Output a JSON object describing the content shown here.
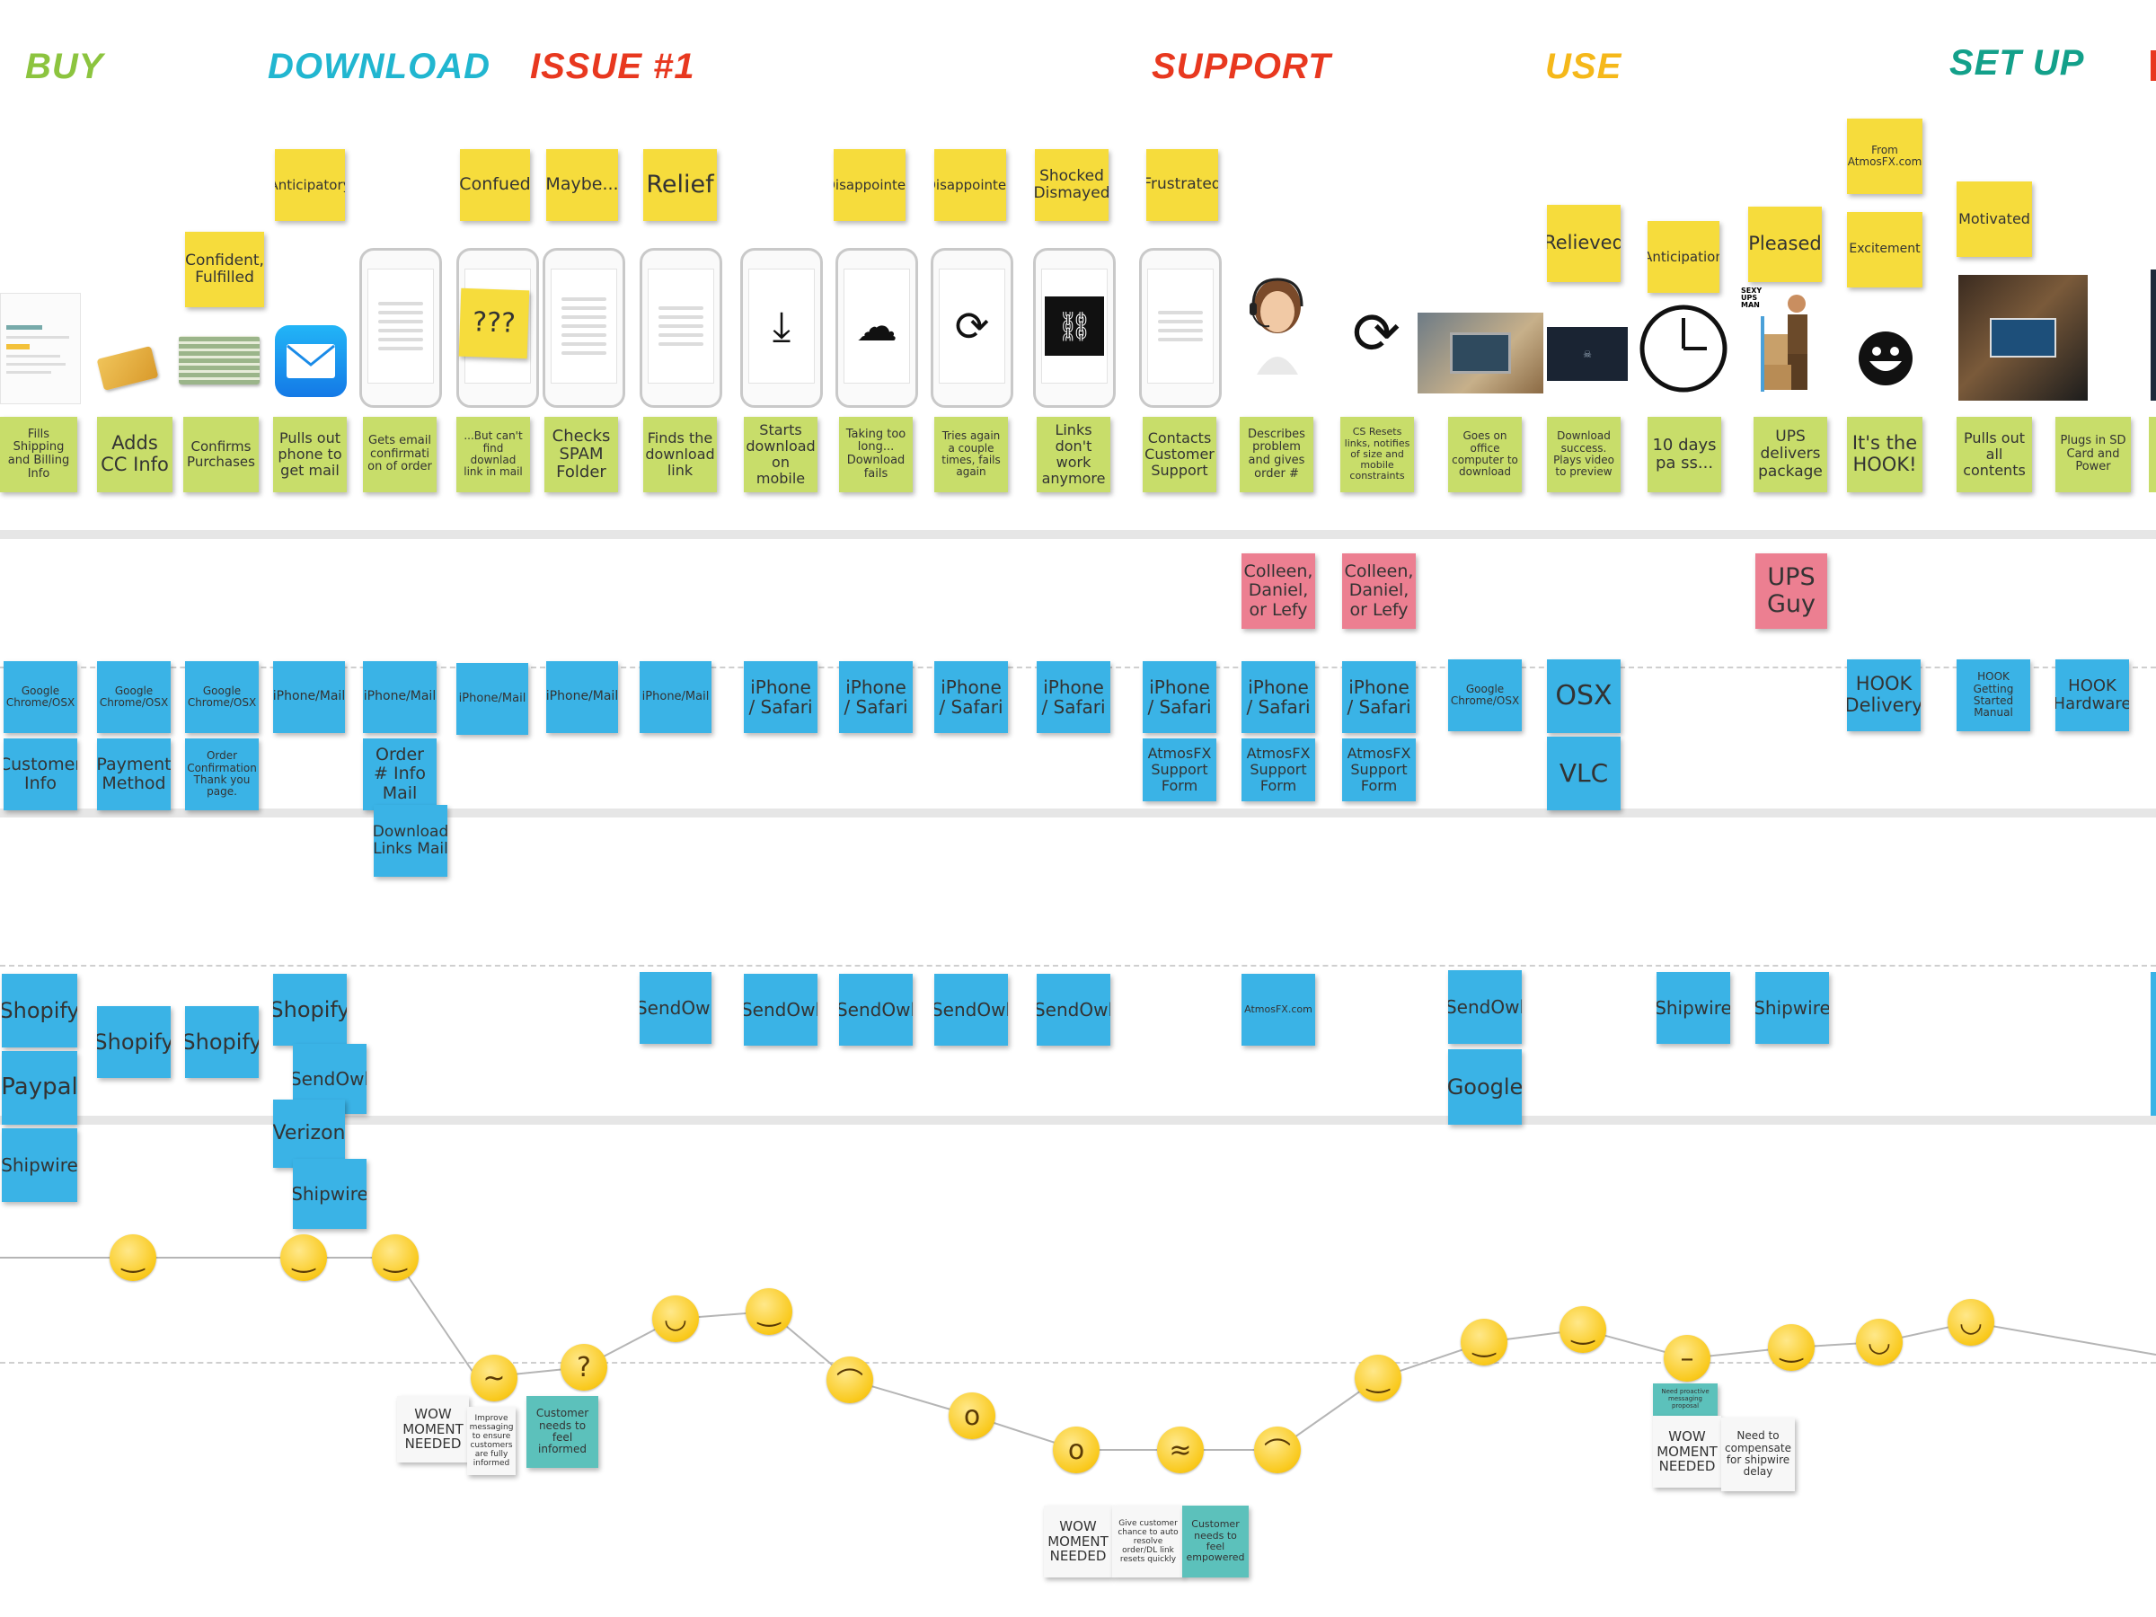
{
  "phases": [
    "BUY",
    "DOWNLOAD",
    "ISSUE #1",
    "SUPPORT",
    "USE",
    "SET UP"
  ],
  "colors": {
    "buy": "#8cc43f",
    "download": "#21b6d0",
    "issue": "#e8381f",
    "support": "#e8381f",
    "use": "#f5b81a",
    "setup": "#13a08a",
    "sticky_yellow": "#f6dc3c",
    "sticky_green": "#c8dd6a",
    "sticky_blue": "#3ab3e6",
    "sticky_pink": "#ec7f91",
    "sticky_teal": "#5cc1bb"
  },
  "feelings": [
    "Confident, Fulfilled",
    "Anticipatory",
    "Confued",
    "\"Maybe...\"",
    "Relief",
    "Disappointed",
    "Disappointed",
    "Shocked Dismayed",
    "Frustrated",
    "Relieved",
    "Anticipation",
    "Pleased",
    "From AtmosFX.com",
    "Excitement",
    "Motivated"
  ],
  "screen_text": [
    "???",
    "SEXY UPS MAN"
  ],
  "actions": [
    "Fills Shipping and Billing Info",
    "Adds CC Info",
    "Confirms Purchases",
    "Pulls out phone to get mail",
    "Gets email confirmati on of order",
    "...But can't find downlad link in mail",
    "Checks SPAM Folder",
    "Finds the download link",
    "Starts download on mobile",
    "Taking too long... Download fails",
    "Tries again a couple times, fails again",
    "Links don't work anymore",
    "Contacts Customer Support",
    "Describes problem and gives order #",
    "CS Resets links, notifies of size and mobile constraints",
    "Goes on office computer to download",
    "Download success. Plays video to preview",
    "10 days pa ss...",
    "UPS delivers package",
    "It's the HOOK!",
    "Pulls out all contents",
    "Plugs in SD Card and Power"
  ],
  "people": [
    "Colleen, Daniel, or Lefy",
    "Colleen, Daniel, or Lefy",
    "UPS Guy"
  ],
  "touchpoints": [
    "Google Chrome/OSX",
    "Google Chrome/OSX",
    "Google Chrome/OSX",
    "iPhone/Mail",
    "iPhone/Mail",
    "iPhone/Mail",
    "iPhone/Mail",
    "iPhone/Mail",
    "iPhone / Safari",
    "iPhone / Safari",
    "iPhone / Safari",
    "iPhone / Safari",
    "iPhone / Safari",
    "iPhone / Safari",
    "iPhone / Safari",
    "Google Chrome/OSX",
    "OSX",
    "HOOK Delivery",
    "HOOK Getting Started Manual",
    "HOOK Hardware",
    "Customer Info",
    "Payment Method",
    "Order Confirmation Thank you page.",
    "Order # Info Mail",
    "Download Links Mail",
    "AtmosFX Support Form",
    "AtmosFX Support Form",
    "AtmosFX Support Form",
    "VLC"
  ],
  "systems": [
    "Shopify",
    "Paypal",
    "Shipwire",
    "Shopify",
    "Shopify",
    "Shopify",
    "SendOwl",
    "Verizon",
    "Shipwire",
    "SendOwl",
    "SendOwl",
    "SendOwl",
    "SendOwl",
    "SendOwl",
    "AtmosFX.com",
    "SendOwl",
    "Google",
    "Shipwire",
    "Shipwire"
  ],
  "opportunities": [
    "WOW MOMENT NEEDED",
    "Improve messaging to ensure customers are fully informed",
    "Customer needs to feel informed",
    "WOW MOMENT NEEDED",
    "Give customer chance to auto resolve order/DL link resets quickly",
    "Customer needs to feel empowered",
    "Need proactive messaging proposal",
    "WOW MOMENT NEEDED",
    "Need to compensate for shipwire delay"
  ],
  "emotion_curve": {
    "points": [
      {
        "step": "Adds CC Info",
        "face": "slightly-smiling"
      },
      {
        "step": "Pulls out phone to get mail",
        "face": "slightly-smiling"
      },
      {
        "step": "Gets email confirmation of order",
        "face": "slightly-smiling"
      },
      {
        "step": "...But can't find download link in mail",
        "face": "confused"
      },
      {
        "step": "Checks SPAM Folder",
        "face": "thinking"
      },
      {
        "step": "Finds the download link",
        "face": "relieved"
      },
      {
        "step": "Starts download on mobile",
        "face": "slightly-smiling"
      },
      {
        "step": "Taking too long... Download fails",
        "face": "frowning"
      },
      {
        "step": "Tries again a couple times, fails again",
        "face": "open-mouth"
      },
      {
        "step": "Links don't work anymore",
        "face": "anxious-sweat"
      },
      {
        "step": "Contacts Customer Support",
        "face": "steaming"
      },
      {
        "step": "Describes problem and gives order #",
        "face": "frowning"
      },
      {
        "step": "CS Resets links",
        "face": "slightly-smiling"
      },
      {
        "step": "Goes on office computer to download",
        "face": "slightly-smiling"
      },
      {
        "step": "Download success",
        "face": "slightly-smiling"
      },
      {
        "step": "10 days pass",
        "face": "neutral"
      },
      {
        "step": "UPS delivers package",
        "face": "slightly-smiling"
      },
      {
        "step": "It's the HOOK!",
        "face": "grinning"
      },
      {
        "step": "Pulls out all contents",
        "face": "grinning"
      }
    ]
  }
}
